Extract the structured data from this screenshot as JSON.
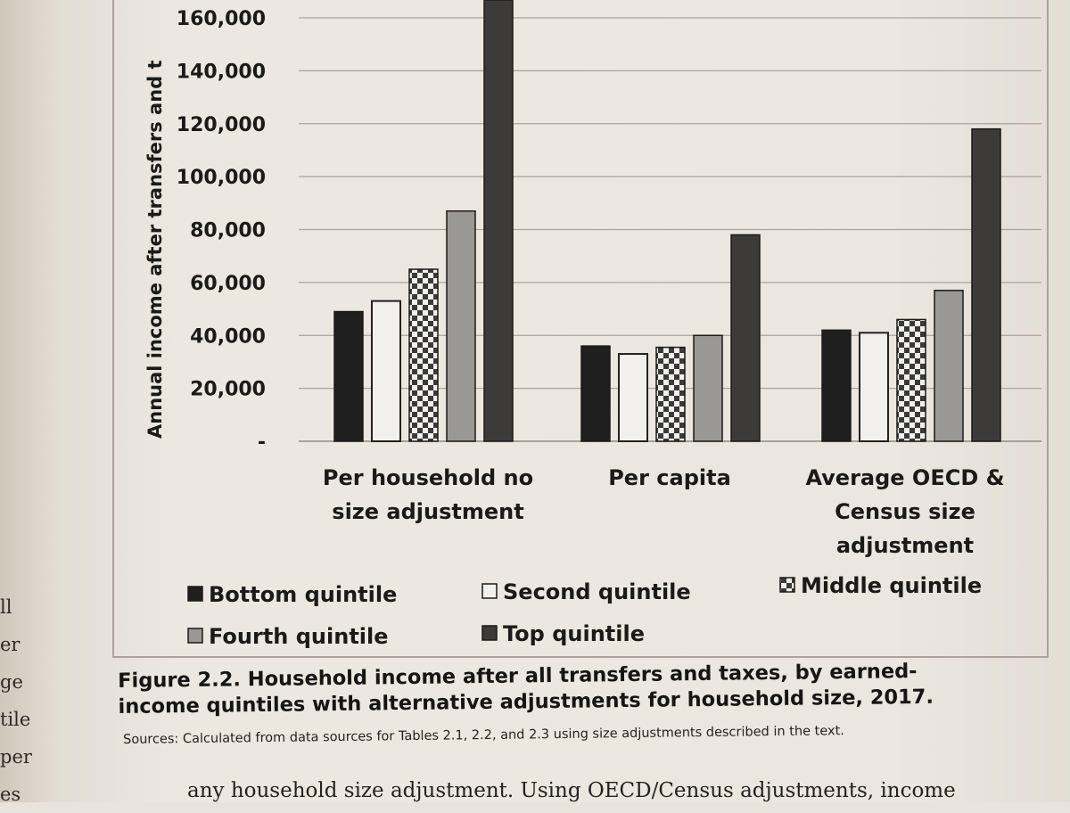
{
  "left_margin": [
    "ll",
    "er",
    "ge",
    "tile",
    "per",
    "es"
  ],
  "chart_data": {
    "type": "bar",
    "ylabel": "Annual income after transfers and t",
    "ylim": [
      0,
      170000
    ],
    "yticks": [
      0,
      20000,
      40000,
      60000,
      80000,
      100000,
      120000,
      140000,
      160000
    ],
    "ytick_labels": [
      "-",
      "20,000",
      "40,000",
      "60,000",
      "80,000",
      "100,000",
      "120,000",
      "140,000",
      "160,000"
    ],
    "categories": [
      [
        "Per household no",
        "size adjustment"
      ],
      [
        "Per capita"
      ],
      [
        "Average OECD &",
        "Census size",
        "adjustment"
      ]
    ],
    "series": [
      {
        "name": "Bottom quintile",
        "color": "#1f1f1f",
        "pattern": "solid",
        "values": [
          49000,
          36000,
          42000
        ]
      },
      {
        "name": "Second quintile",
        "color": "#f2f0ec",
        "pattern": "outline",
        "values": [
          53000,
          33000,
          41000
        ]
      },
      {
        "name": "Middle quintile",
        "color": "#4a4a4a",
        "pattern": "checker",
        "values": [
          65000,
          35500,
          46000
        ]
      },
      {
        "name": "Fourth quintile",
        "color": "#9a9895",
        "pattern": "solid",
        "values": [
          87000,
          40000,
          57000
        ]
      },
      {
        "name": "Top quintile",
        "color": "#3c3b3a",
        "pattern": "solid",
        "values": [
          168000,
          78000,
          118000
        ]
      }
    ],
    "grid": true,
    "legend_position": "bottom"
  },
  "caption": {
    "line1": "Figure 2.2.  Household income after all transfers and taxes, by earned-",
    "line2": "income quintiles with alternative adjustments for household size, 2017.",
    "sources": "Sources: Calculated from data sources for Tables 2.1, 2.2, and 2.3 using size adjustments described in the text."
  },
  "bottom_text": "any household size adjustment. Using OECD/Census adjustments, income"
}
